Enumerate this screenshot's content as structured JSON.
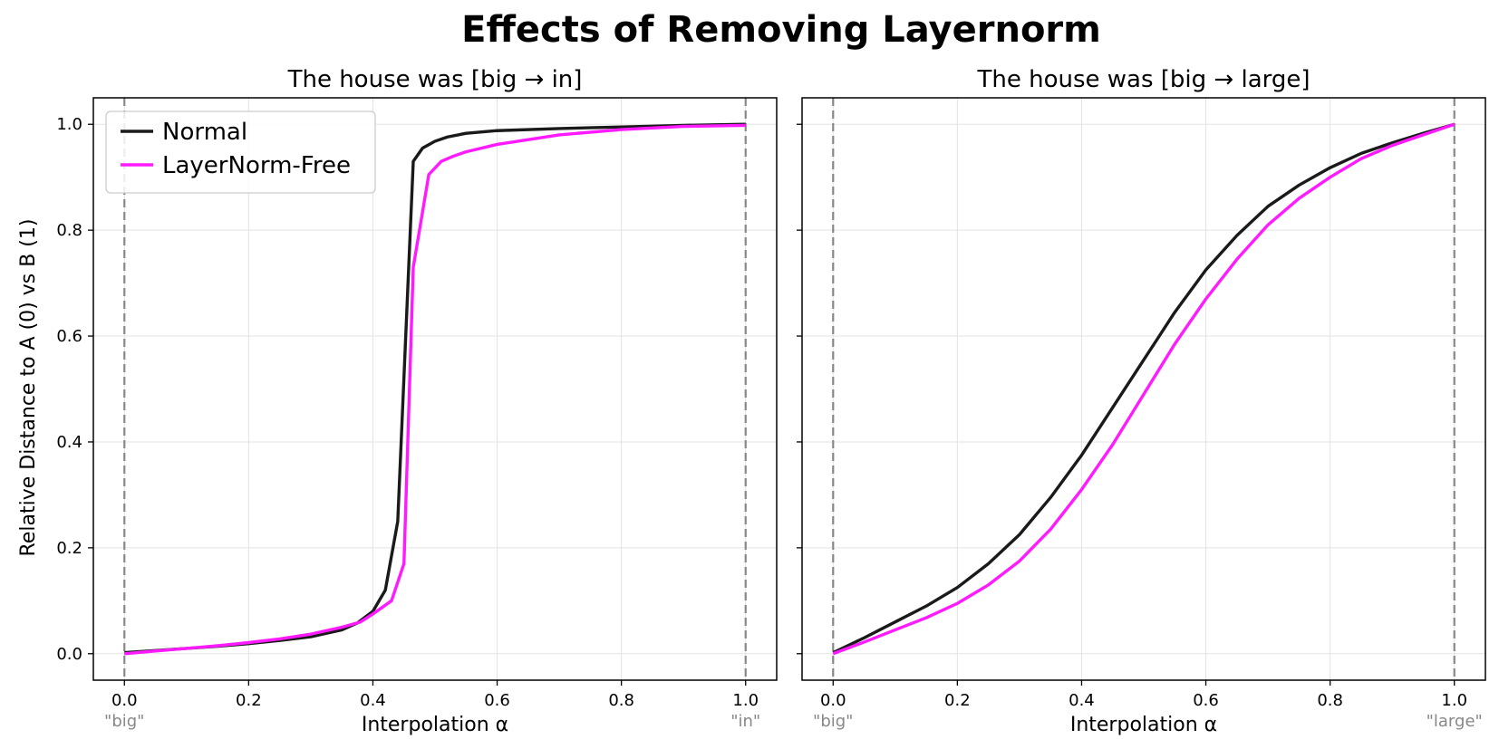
{
  "figure": {
    "suptitle": "Effects of Removing Layernorm",
    "ylabel": "Relative Distance to A (0) vs B (1)"
  },
  "legend": {
    "items": [
      {
        "label": "Normal",
        "color": "#1a1a1a"
      },
      {
        "label": "LayerNorm-Free",
        "color": "#ff1aff"
      }
    ],
    "placement": "upper-left of first panel"
  },
  "chart_data": [
    {
      "type": "line",
      "title": "The house was [big → in]",
      "xlabel": "Interpolation α",
      "ylabel": "Relative Distance to A (0) vs B (1)",
      "xlim": [
        -0.05,
        1.05
      ],
      "ylim": [
        -0.05,
        1.05
      ],
      "xticks": [
        "0.0",
        "0.2",
        "0.4",
        "0.6",
        "0.8",
        "1.0"
      ],
      "yticks": [
        "0.0",
        "0.2",
        "0.4",
        "0.6",
        "0.8",
        "1.0"
      ],
      "grid": true,
      "vlines": [
        0.0,
        1.0
      ],
      "endpoint_labels": {
        "left": "\"big\"",
        "right": "\"in\""
      },
      "series": [
        {
          "name": "Normal",
          "color": "#1a1a1a",
          "x": [
            0.0,
            0.05,
            0.1,
            0.15,
            0.2,
            0.25,
            0.3,
            0.35,
            0.375,
            0.4,
            0.42,
            0.44,
            0.465,
            0.48,
            0.5,
            0.52,
            0.55,
            0.6,
            0.7,
            0.8,
            0.9,
            1.0
          ],
          "y": [
            0.002,
            0.006,
            0.01,
            0.014,
            0.019,
            0.025,
            0.032,
            0.045,
            0.058,
            0.08,
            0.12,
            0.25,
            0.93,
            0.955,
            0.968,
            0.976,
            0.983,
            0.988,
            0.992,
            0.995,
            0.998,
            1.0
          ]
        },
        {
          "name": "LayerNorm-Free",
          "color": "#ff1aff",
          "x": [
            0.0,
            0.05,
            0.1,
            0.15,
            0.2,
            0.25,
            0.3,
            0.35,
            0.38,
            0.4,
            0.43,
            0.45,
            0.465,
            0.49,
            0.51,
            0.53,
            0.55,
            0.6,
            0.7,
            0.8,
            0.9,
            1.0
          ],
          "y": [
            0.0,
            0.005,
            0.01,
            0.015,
            0.021,
            0.028,
            0.037,
            0.05,
            0.06,
            0.075,
            0.1,
            0.17,
            0.73,
            0.905,
            0.93,
            0.94,
            0.948,
            0.962,
            0.98,
            0.99,
            0.996,
            0.998
          ]
        }
      ]
    },
    {
      "type": "line",
      "title": "The house was [big → large]",
      "xlabel": "Interpolation α",
      "xlim": [
        -0.05,
        1.05
      ],
      "ylim": [
        -0.05,
        1.05
      ],
      "xticks": [
        "0.0",
        "0.2",
        "0.4",
        "0.6",
        "0.8",
        "1.0"
      ],
      "grid": true,
      "vlines": [
        0.0,
        1.0
      ],
      "endpoint_labels": {
        "left": "\"big\"",
        "right": "\"large\""
      },
      "series": [
        {
          "name": "Normal",
          "color": "#1a1a1a",
          "x": [
            0.0,
            0.05,
            0.1,
            0.15,
            0.2,
            0.25,
            0.3,
            0.35,
            0.4,
            0.45,
            0.5,
            0.55,
            0.6,
            0.65,
            0.7,
            0.75,
            0.8,
            0.85,
            0.9,
            0.95,
            1.0
          ],
          "y": [
            0.002,
            0.03,
            0.06,
            0.09,
            0.125,
            0.17,
            0.225,
            0.295,
            0.375,
            0.465,
            0.555,
            0.645,
            0.725,
            0.79,
            0.845,
            0.885,
            0.918,
            0.945,
            0.965,
            0.983,
            1.0
          ]
        },
        {
          "name": "LayerNorm-Free",
          "color": "#ff1aff",
          "x": [
            0.0,
            0.05,
            0.1,
            0.15,
            0.2,
            0.25,
            0.3,
            0.35,
            0.4,
            0.45,
            0.5,
            0.55,
            0.6,
            0.65,
            0.7,
            0.75,
            0.8,
            0.85,
            0.9,
            0.95,
            1.0
          ],
          "y": [
            0.0,
            0.022,
            0.045,
            0.068,
            0.095,
            0.13,
            0.175,
            0.235,
            0.31,
            0.395,
            0.49,
            0.585,
            0.67,
            0.745,
            0.81,
            0.86,
            0.9,
            0.935,
            0.96,
            0.98,
            1.0
          ]
        }
      ]
    }
  ]
}
